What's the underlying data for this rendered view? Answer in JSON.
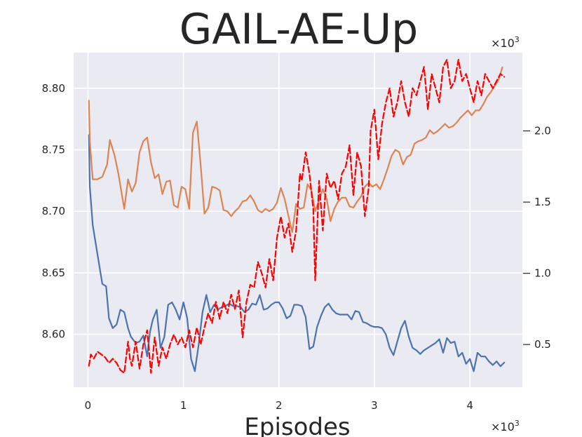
{
  "chart_data": {
    "type": "line",
    "title": "GAIL-AE-Up",
    "xlabel": "Episodes",
    "ylabel": "",
    "x_multiplier": "×10",
    "x_multiplier_exp": "3",
    "y2_multiplier": "×10",
    "y2_multiplier_exp": "3",
    "xlim": [
      -0.15,
      4.55
    ],
    "ylim_left": [
      8.557,
      8.829
    ],
    "ylim_right": [
      0.2,
      2.55
    ],
    "x_ticks": [
      0,
      1,
      2,
      3,
      4
    ],
    "x_tick_labels": [
      "0",
      "1",
      "2",
      "3",
      "4"
    ],
    "y_left_ticks": [
      8.6,
      8.65,
      8.7,
      8.75,
      8.8
    ],
    "y_left_tick_labels": [
      "8.60",
      "8.65",
      "8.70",
      "8.75",
      "8.80"
    ],
    "y_right_ticks": [
      0.5,
      1.0,
      1.5,
      2.0
    ],
    "y_right_tick_labels": [
      "0.5",
      "1.0",
      "1.5",
      "2.0"
    ],
    "grid": true,
    "background": "#EAEAF2",
    "series": [
      {
        "axis": "left",
        "color": "#4C72B0",
        "dash": "solid",
        "x": [
          0.01,
          0.02,
          0.05,
          0.1,
          0.15,
          0.19,
          0.22,
          0.26,
          0.3,
          0.34,
          0.38,
          0.42,
          0.45,
          0.5,
          0.54,
          0.58,
          0.62,
          0.65,
          0.68,
          0.72,
          0.76,
          0.8,
          0.84,
          0.88,
          0.92,
          0.96,
          1.0,
          1.04,
          1.08,
          1.12,
          1.16,
          1.2,
          1.24,
          1.28,
          1.32,
          1.36,
          1.4,
          1.44,
          1.48,
          1.52,
          1.56,
          1.6,
          1.64,
          1.68,
          1.72,
          1.76,
          1.8,
          1.84,
          1.88,
          1.92,
          1.96,
          2.0,
          2.04,
          2.08,
          2.12,
          2.16,
          2.2,
          2.24,
          2.28,
          2.32,
          2.36,
          2.4,
          2.44,
          2.48,
          2.52,
          2.56,
          2.6,
          2.64,
          2.68,
          2.72,
          2.76,
          2.8,
          2.84,
          2.88,
          2.92,
          2.96,
          3.0,
          3.04,
          3.08,
          3.12,
          3.16,
          3.2,
          3.24,
          3.28,
          3.32,
          3.36,
          3.4,
          3.44,
          3.48,
          3.52,
          3.56,
          3.6,
          3.64,
          3.68,
          3.72,
          3.76,
          3.8,
          3.84,
          3.88,
          3.92,
          3.96,
          4.0,
          4.04,
          4.08,
          4.12,
          4.16,
          4.2,
          4.24,
          4.28,
          4.32,
          4.36
        ],
        "y": [
          8.762,
          8.72,
          8.689,
          8.665,
          8.641,
          8.639,
          8.613,
          8.605,
          8.608,
          8.62,
          8.618,
          8.605,
          8.598,
          8.593,
          8.594,
          8.599,
          8.582,
          8.602,
          8.612,
          8.62,
          8.589,
          8.598,
          8.624,
          8.626,
          8.62,
          8.612,
          8.626,
          8.613,
          8.58,
          8.57,
          8.592,
          8.618,
          8.632,
          8.618,
          8.624,
          8.62,
          8.622,
          8.623,
          8.625,
          8.623,
          8.623,
          8.622,
          8.618,
          8.62,
          8.625,
          8.624,
          8.632,
          8.62,
          8.621,
          8.624,
          8.626,
          8.626,
          8.621,
          8.613,
          8.615,
          8.624,
          8.624,
          8.623,
          8.614,
          8.588,
          8.59,
          8.606,
          8.615,
          8.622,
          8.625,
          8.62,
          8.617,
          8.616,
          8.616,
          8.616,
          8.612,
          8.619,
          8.618,
          8.61,
          8.609,
          8.607,
          8.606,
          8.606,
          8.605,
          8.6,
          8.589,
          8.583,
          8.594,
          8.605,
          8.611,
          8.598,
          8.589,
          8.587,
          8.584,
          8.587,
          8.589,
          8.591,
          8.593,
          8.596,
          8.585,
          8.597,
          8.593,
          8.594,
          8.582,
          8.585,
          8.576,
          8.58,
          8.57,
          8.585,
          8.582,
          8.582,
          8.578,
          8.575,
          8.578,
          8.574,
          8.577
        ]
      },
      {
        "axis": "left",
        "color": "#DD8452",
        "dash": "solid",
        "x": [
          0.01,
          0.02,
          0.05,
          0.1,
          0.15,
          0.2,
          0.23,
          0.28,
          0.32,
          0.35,
          0.38,
          0.42,
          0.46,
          0.5,
          0.54,
          0.58,
          0.62,
          0.66,
          0.7,
          0.74,
          0.78,
          0.82,
          0.86,
          0.9,
          0.94,
          0.98,
          1.02,
          1.06,
          1.1,
          1.14,
          1.18,
          1.22,
          1.26,
          1.3,
          1.34,
          1.38,
          1.42,
          1.46,
          1.5,
          1.54,
          1.58,
          1.62,
          1.66,
          1.7,
          1.74,
          1.78,
          1.82,
          1.86,
          1.9,
          1.94,
          1.98,
          2.02,
          2.06,
          2.1,
          2.14,
          2.18,
          2.22,
          2.26,
          2.3,
          2.34,
          2.38,
          2.42,
          2.46,
          2.5,
          2.54,
          2.58,
          2.62,
          2.66,
          2.7,
          2.74,
          2.78,
          2.82,
          2.86,
          2.9,
          2.94,
          2.98,
          3.02,
          3.06,
          3.1,
          3.14,
          3.18,
          3.22,
          3.26,
          3.3,
          3.34,
          3.38,
          3.42,
          3.46,
          3.5,
          3.54,
          3.58,
          3.62,
          3.66,
          3.7,
          3.74,
          3.78,
          3.82,
          3.86,
          3.9,
          3.94,
          3.98,
          4.02,
          4.06,
          4.1,
          4.14,
          4.18,
          4.22,
          4.26,
          4.3,
          4.34
        ],
        "y": [
          8.79,
          8.757,
          8.726,
          8.726,
          8.728,
          8.738,
          8.758,
          8.745,
          8.73,
          8.716,
          8.702,
          8.726,
          8.716,
          8.723,
          8.748,
          8.757,
          8.76,
          8.74,
          8.727,
          8.73,
          8.714,
          8.724,
          8.725,
          8.705,
          8.703,
          8.72,
          8.718,
          8.702,
          8.764,
          8.773,
          8.738,
          8.698,
          8.703,
          8.72,
          8.719,
          8.717,
          8.701,
          8.7,
          8.696,
          8.7,
          8.703,
          8.708,
          8.709,
          8.713,
          8.708,
          8.701,
          8.699,
          8.702,
          8.7,
          8.702,
          8.707,
          8.719,
          8.71,
          8.696,
          8.683,
          8.706,
          8.702,
          8.703,
          8.722,
          8.717,
          8.7,
          8.709,
          8.718,
          8.71,
          8.692,
          8.702,
          8.708,
          8.711,
          8.711,
          8.704,
          8.703,
          8.708,
          8.712,
          8.72,
          8.723,
          8.72,
          8.722,
          8.718,
          8.726,
          8.735,
          8.745,
          8.75,
          8.748,
          8.738,
          8.744,
          8.746,
          8.755,
          8.757,
          8.758,
          8.76,
          8.766,
          8.763,
          8.765,
          8.768,
          8.771,
          8.768,
          8.769,
          8.772,
          8.776,
          8.779,
          8.782,
          8.778,
          8.782,
          8.782,
          8.787,
          8.793,
          8.797,
          8.802,
          8.807,
          8.817
        ]
      },
      {
        "axis": "right",
        "color": "#FF0000",
        "dash": "dashed",
        "x": [
          0.01,
          0.03,
          0.06,
          0.1,
          0.14,
          0.18,
          0.22,
          0.26,
          0.3,
          0.34,
          0.38,
          0.42,
          0.44,
          0.46,
          0.5,
          0.54,
          0.58,
          0.62,
          0.66,
          0.7,
          0.74,
          0.78,
          0.82,
          0.86,
          0.9,
          0.94,
          0.98,
          1.02,
          1.06,
          1.1,
          1.14,
          1.18,
          1.22,
          1.26,
          1.3,
          1.34,
          1.38,
          1.42,
          1.46,
          1.5,
          1.54,
          1.58,
          1.62,
          1.66,
          1.7,
          1.74,
          1.78,
          1.82,
          1.86,
          1.9,
          1.94,
          1.98,
          2.02,
          2.06,
          2.1,
          2.14,
          2.18,
          2.22,
          2.24,
          2.28,
          2.32,
          2.36,
          2.38,
          2.42,
          2.46,
          2.5,
          2.54,
          2.58,
          2.62,
          2.66,
          2.7,
          2.74,
          2.78,
          2.82,
          2.86,
          2.9,
          2.94,
          2.96,
          3.0,
          3.04,
          3.08,
          3.12,
          3.16,
          3.2,
          3.24,
          3.28,
          3.32,
          3.36,
          3.4,
          3.44,
          3.48,
          3.52,
          3.56,
          3.6,
          3.64,
          3.68,
          3.72,
          3.76,
          3.8,
          3.84,
          3.88,
          3.92,
          3.96,
          4.0,
          4.04,
          4.08,
          4.12,
          4.16,
          4.2,
          4.24,
          4.28,
          4.32,
          4.36
        ],
        "y": [
          0.35,
          0.43,
          0.4,
          0.45,
          0.43,
          0.41,
          0.37,
          0.4,
          0.37,
          0.32,
          0.3,
          0.52,
          0.4,
          0.35,
          0.52,
          0.33,
          0.5,
          0.6,
          0.3,
          0.55,
          0.35,
          0.48,
          0.4,
          0.5,
          0.57,
          0.5,
          0.55,
          0.48,
          0.6,
          0.48,
          0.62,
          0.5,
          0.62,
          0.72,
          0.65,
          0.8,
          0.68,
          0.8,
          0.72,
          0.85,
          0.75,
          0.88,
          0.55,
          0.8,
          0.92,
          0.9,
          1.08,
          1.0,
          0.9,
          1.1,
          0.95,
          1.25,
          1.4,
          1.25,
          1.35,
          1.15,
          1.3,
          1.7,
          1.65,
          1.85,
          1.7,
          1.45,
          0.95,
          1.65,
          1.3,
          1.7,
          1.6,
          1.65,
          1.52,
          1.7,
          1.75,
          1.9,
          1.55,
          1.85,
          1.75,
          1.4,
          1.6,
          2.0,
          2.15,
          1.8,
          2.05,
          2.2,
          2.3,
          2.1,
          2.2,
          2.35,
          2.2,
          2.1,
          2.3,
          2.25,
          2.35,
          2.45,
          2.15,
          2.4,
          2.3,
          2.2,
          2.45,
          2.5,
          2.3,
          2.35,
          2.5,
          2.35,
          2.4,
          2.3,
          2.2,
          2.35,
          2.25,
          2.4,
          2.35,
          2.3,
          2.35,
          2.4,
          2.38
        ]
      }
    ]
  }
}
